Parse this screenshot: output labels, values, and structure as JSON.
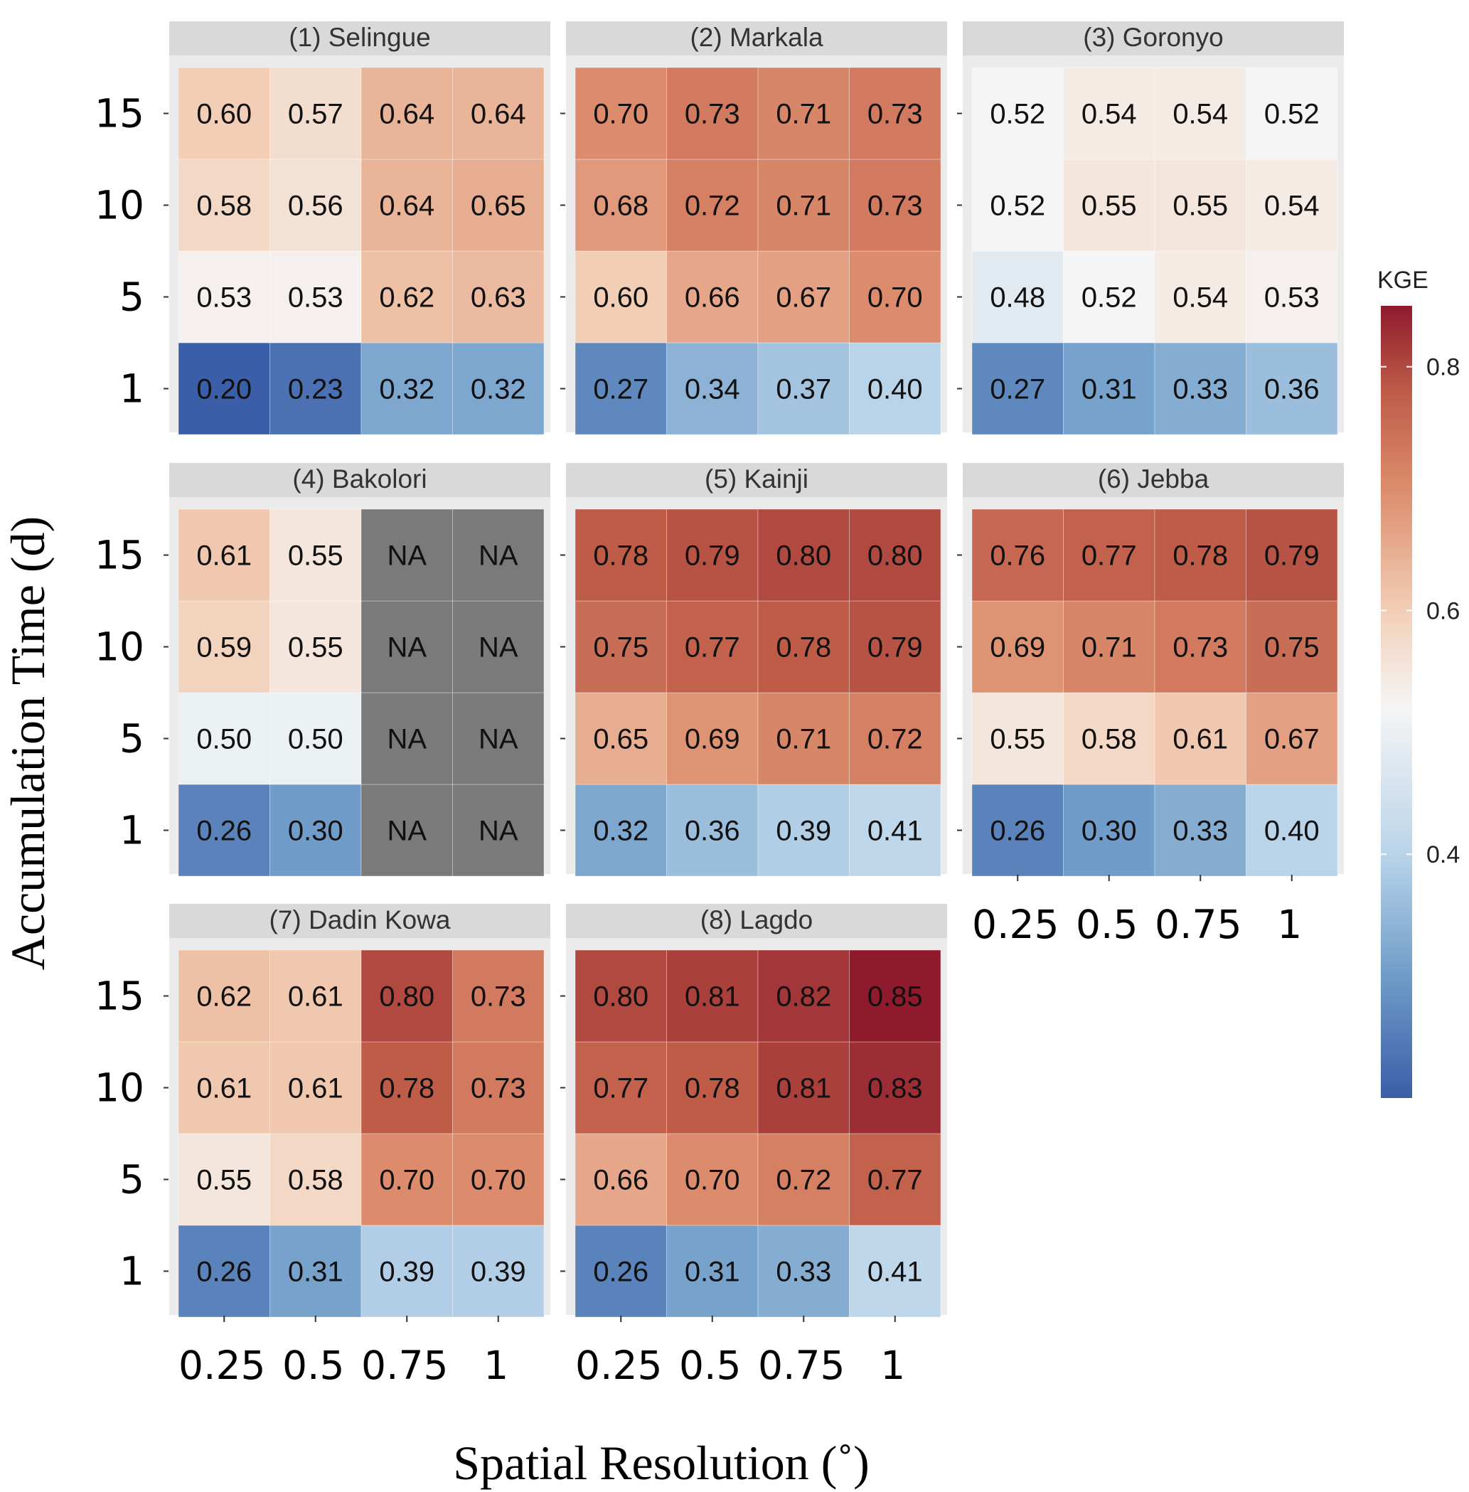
{
  "chart_data": {
    "type": "heatmap",
    "xlabel": "Spatial Resolution (˚)",
    "ylabel": "Accumulation Time (d)",
    "x_ticks": [
      "0.25",
      "0.5",
      "0.75",
      "1"
    ],
    "y_ticks": [
      "1",
      "5",
      "10",
      "15"
    ],
    "y_order_note_values": "rows listed bottom-to-top: 1, 5, 10, 15",
    "legend": {
      "title": "KGE",
      "ticks": [
        0.4,
        0.6,
        0.8
      ],
      "tick_labels": [
        "0.4",
        "0.6",
        "0.8"
      ],
      "range": [
        0.2,
        0.85
      ],
      "placement": "right",
      "colors": [
        "#3b5ea8",
        "#6f9cc8",
        "#b9d4e9",
        "#f5f5f5",
        "#f2ceb6",
        "#dc8c6c",
        "#b24a3f",
        "#8e1a2c"
      ]
    },
    "na_color": "#7a7a7a",
    "panels": [
      {
        "title": "(1) Selingue",
        "values": [
          [
            0.2,
            0.23,
            0.32,
            0.32
          ],
          [
            0.53,
            0.53,
            0.62,
            0.63
          ],
          [
            0.58,
            0.56,
            0.64,
            0.65
          ],
          [
            0.6,
            0.57,
            0.64,
            0.64
          ]
        ]
      },
      {
        "title": "(2) Markala",
        "values": [
          [
            0.27,
            0.34,
            0.37,
            0.4
          ],
          [
            0.6,
            0.66,
            0.67,
            0.7
          ],
          [
            0.68,
            0.72,
            0.71,
            0.73
          ],
          [
            0.7,
            0.73,
            0.71,
            0.73
          ]
        ]
      },
      {
        "title": "(3) Goronyo",
        "values": [
          [
            0.27,
            0.31,
            0.33,
            0.36
          ],
          [
            0.48,
            0.52,
            0.54,
            0.53
          ],
          [
            0.52,
            0.55,
            0.55,
            0.54
          ],
          [
            0.52,
            0.54,
            0.54,
            0.52
          ]
        ]
      },
      {
        "title": "(4) Bakolori",
        "values": [
          [
            0.26,
            0.3,
            null,
            null
          ],
          [
            0.5,
            0.5,
            null,
            null
          ],
          [
            0.59,
            0.55,
            null,
            null
          ],
          [
            0.61,
            0.55,
            null,
            null
          ]
        ]
      },
      {
        "title": "(5) Kainji",
        "values": [
          [
            0.32,
            0.36,
            0.39,
            0.41
          ],
          [
            0.65,
            0.69,
            0.71,
            0.72
          ],
          [
            0.75,
            0.77,
            0.78,
            0.79
          ],
          [
            0.78,
            0.79,
            0.8,
            0.8
          ]
        ]
      },
      {
        "title": "(6) Jebba",
        "values": [
          [
            0.26,
            0.3,
            0.33,
            0.4
          ],
          [
            0.55,
            0.58,
            0.61,
            0.67
          ],
          [
            0.69,
            0.71,
            0.73,
            0.75
          ],
          [
            0.76,
            0.77,
            0.78,
            0.79
          ]
        ]
      },
      {
        "title": "(7) Dadin Kowa",
        "values": [
          [
            0.26,
            0.31,
            0.39,
            0.39
          ],
          [
            0.55,
            0.58,
            0.7,
            0.7
          ],
          [
            0.61,
            0.61,
            0.78,
            0.73
          ],
          [
            0.62,
            0.61,
            0.8,
            0.73
          ]
        ]
      },
      {
        "title": "(8) Lagdo",
        "values": [
          [
            0.26,
            0.31,
            0.33,
            0.41
          ],
          [
            0.66,
            0.7,
            0.72,
            0.77
          ],
          [
            0.77,
            0.78,
            0.81,
            0.83
          ],
          [
            0.8,
            0.81,
            0.82,
            0.85
          ]
        ]
      }
    ]
  }
}
